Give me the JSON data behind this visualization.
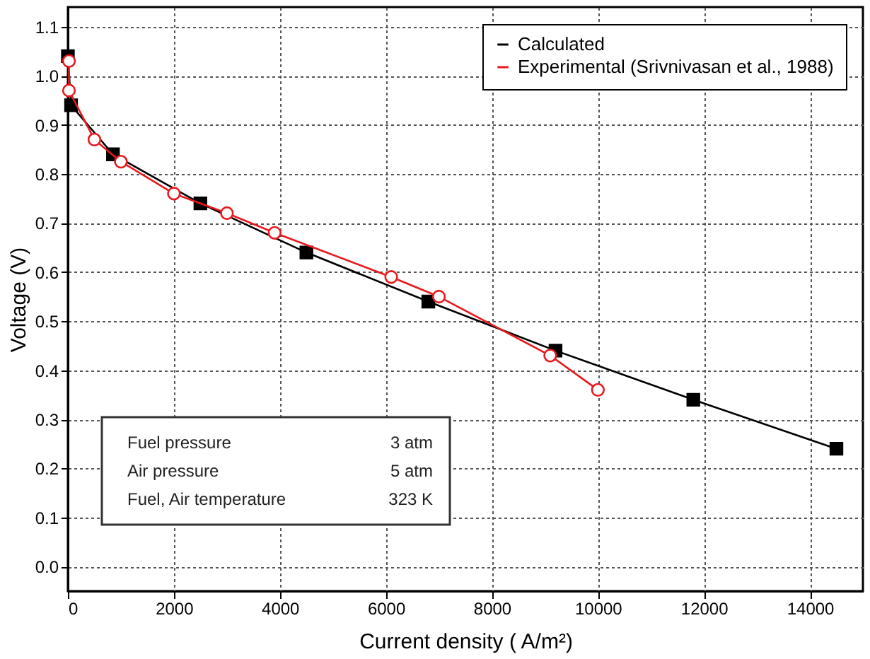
{
  "chart_data": {
    "type": "line",
    "xlabel": "Current density ( A/m²)",
    "ylabel": "Voltage (V)",
    "xlim": [
      0,
      15000
    ],
    "ylim": [
      -0.05,
      1.14
    ],
    "xticks": [
      0,
      2000,
      4000,
      6000,
      8000,
      10000,
      12000,
      14000
    ],
    "yticks": [
      {
        "value": 0,
        "label": "0.0"
      },
      0.1,
      0.2,
      0.3,
      0.4,
      0.5,
      0.6,
      0.7,
      0.8,
      0.9,
      {
        "value": 1,
        "label": "1.0"
      },
      1.1
    ],
    "grid": true,
    "legend": "top right",
    "line_style": "solid",
    "series": [
      {
        "name": "Calculated",
        "color": "#000000",
        "marker": "square",
        "x": [
          0,
          60,
          850,
          2500,
          4500,
          6800,
          9200,
          11800,
          14500
        ],
        "values": [
          1.04,
          0.94,
          0.84,
          0.74,
          0.64,
          0.54,
          0.44,
          0.34,
          0.24
        ]
      },
      {
        "name": "Experimental (Srivnivasan et al., 1988)",
        "color": "#e8191d",
        "marker": "circle",
        "x": [
          20,
          20,
          500,
          1000,
          2000,
          3000,
          3900,
          6100,
          7000,
          9100,
          10000
        ],
        "values": [
          1.03,
          0.97,
          0.87,
          0.825,
          0.76,
          0.72,
          0.68,
          0.59,
          0.55,
          0.43,
          0.36
        ]
      }
    ],
    "annotations": [
      "Fuel  pressure",
      "3 atm",
      "Air  pressure",
      "5 atm",
      "Fuel, Air temperature",
      "323 K"
    ]
  }
}
